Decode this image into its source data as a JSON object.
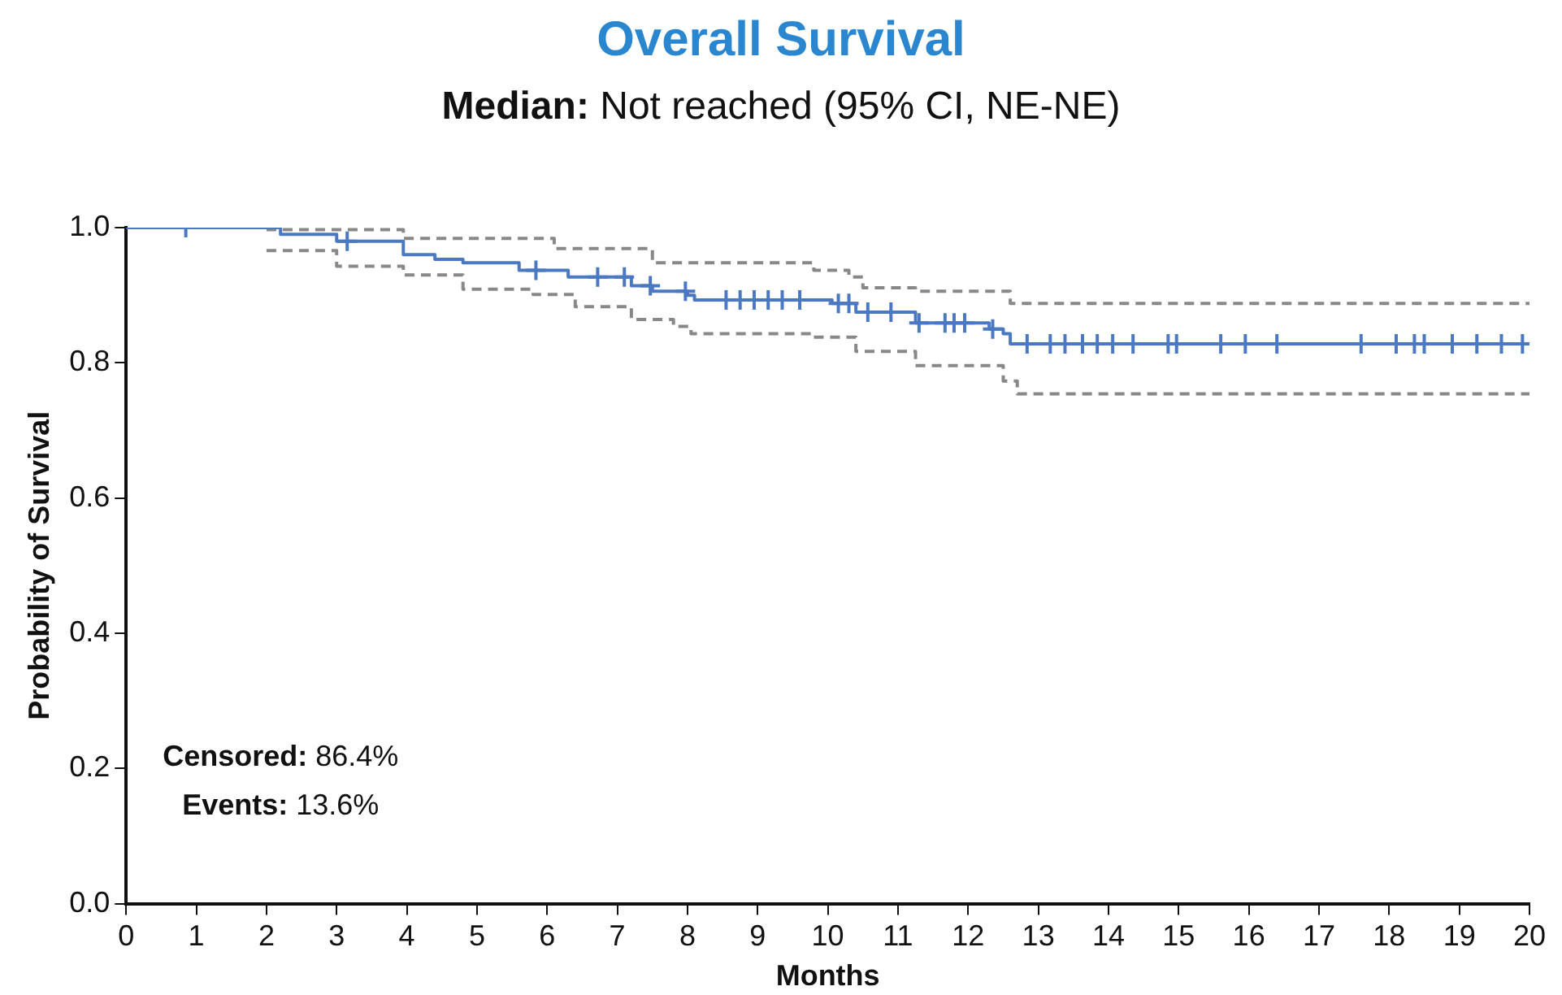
{
  "chart_data": {
    "type": "step",
    "title": "Overall Survival",
    "subtitle": "Median: Not reached (95% CI, NE-NE)",
    "xlabel": "Months",
    "ylabel": "Probability of Survival",
    "xlim": [
      0,
      20
    ],
    "xticks": [
      0,
      1,
      2,
      3,
      4,
      5,
      6,
      7,
      8,
      9,
      10,
      11,
      12,
      13,
      14,
      15,
      16,
      17,
      18,
      19,
      20
    ],
    "ylim": [
      0,
      1
    ],
    "yticks": [
      {
        "value": 0,
        "label": "0.0"
      },
      {
        "value": 0.2,
        "label": "0.2"
      },
      {
        "value": 0.4,
        "label": "0.4"
      },
      {
        "value": 0.6,
        "label": "0.6"
      },
      {
        "value": 0.8,
        "label": "0.8"
      },
      {
        "value": 1,
        "label": "1.0"
      }
    ],
    "grid": false,
    "legend": false,
    "annotations": [
      "Censored: 86.4%",
      "Events: 13.6%"
    ],
    "series": [
      {
        "color": "#888888",
        "line_style": "dashed",
        "marker": "none",
        "x": [
          2.0,
          3.95,
          6.1,
          7.5,
          9.8,
          10.3,
          10.5,
          11.25,
          12.6,
          20
        ],
        "values": [
          0.997,
          0.984,
          0.969,
          0.948,
          0.937,
          0.927,
          0.911,
          0.906,
          0.888,
          0.888
        ]
      },
      {
        "color": "#888888",
        "line_style": "dashed",
        "marker": "none",
        "x": [
          2.0,
          3.0,
          3.95,
          4.8,
          5.8,
          6.4,
          7.2,
          7.8,
          8.05,
          9.8,
          10.4,
          11.25,
          12.5,
          12.7,
          20
        ],
        "values": [
          0.966,
          0.943,
          0.93,
          0.909,
          0.901,
          0.883,
          0.864,
          0.854,
          0.843,
          0.838,
          0.817,
          0.796,
          0.773,
          0.754,
          0.754
        ]
      },
      {
        "color": "#4a78c2",
        "line_style": "solid",
        "marker": "none",
        "x": [
          0,
          2.2,
          3.0,
          3.95,
          4.4,
          4.8,
          5.6,
          6.3,
          7.2,
          7.5,
          8.0,
          8.1,
          10.06,
          10.4,
          11.25,
          12.3,
          12.5,
          12.6,
          20
        ],
        "values": [
          1,
          0.99,
          0.98,
          0.96,
          0.953,
          0.948,
          0.937,
          0.927,
          0.914,
          0.906,
          0.9,
          0.893,
          0.888,
          0.875,
          0.859,
          0.85,
          0.843,
          0.828,
          0.828
        ]
      },
      {
        "type": "scatter",
        "color": "#4a78c2",
        "marker": "cross",
        "x": [
          0.85,
          3.15,
          5.84,
          6.72,
          7.1,
          7.47,
          7.97,
          8.55,
          8.75,
          8.95,
          9.15,
          9.35,
          9.6,
          10.15,
          10.3,
          10.57,
          10.9,
          11.3,
          11.67,
          11.8,
          11.95,
          12.35,
          12.84,
          13.17,
          13.38,
          13.63,
          13.84,
          14.06,
          14.35,
          14.85,
          14.97,
          15.6,
          15.95,
          16.4,
          17.6,
          18.1,
          18.36,
          18.5,
          18.9,
          19.25,
          19.6,
          19.9
        ],
        "values": [
          1,
          0.98,
          0.937,
          0.927,
          0.927,
          0.914,
          0.906,
          0.893,
          0.893,
          0.893,
          0.893,
          0.893,
          0.893,
          0.888,
          0.888,
          0.875,
          0.875,
          0.859,
          0.859,
          0.859,
          0.859,
          0.85,
          0.828,
          0.828,
          0.828,
          0.828,
          0.828,
          0.828,
          0.828,
          0.828,
          0.828,
          0.828,
          0.828,
          0.828,
          0.828,
          0.828,
          0.828,
          0.828,
          0.828,
          0.828,
          0.828,
          0.828
        ]
      }
    ]
  }
}
